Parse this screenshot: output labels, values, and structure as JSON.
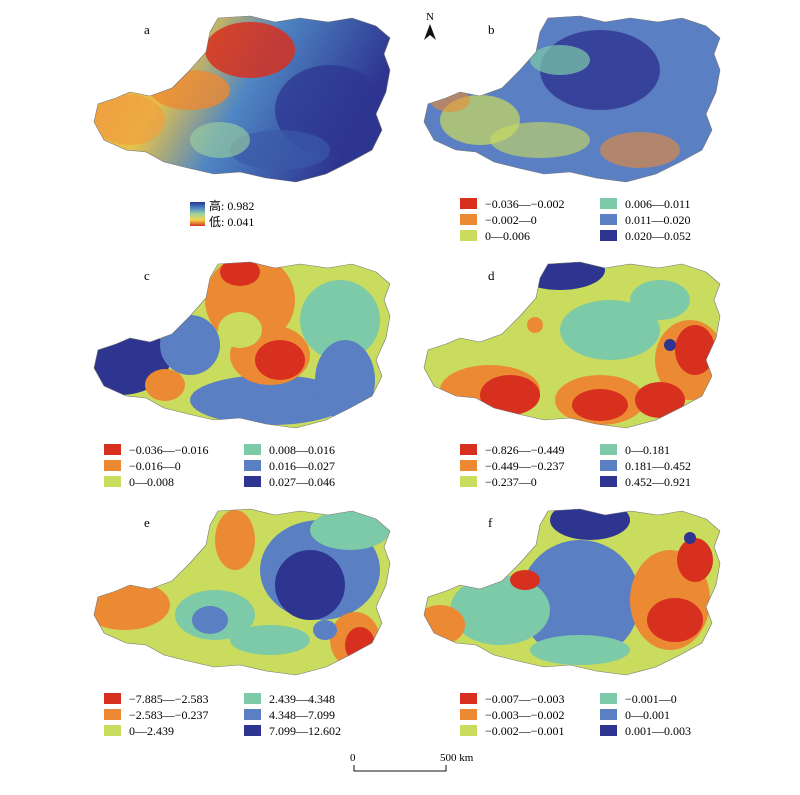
{
  "figure": {
    "north_label": "N",
    "scale_bar": {
      "start_label": "0",
      "end_label": "500 km"
    }
  },
  "colors": {
    "red": "#d7301f",
    "orange": "#ec8a33",
    "yellowgreen": "#c9dc5e",
    "teal": "#7dcaa8",
    "blue": "#5a7fc2",
    "navy": "#2e3590"
  },
  "panels": [
    {
      "id": "a",
      "label": "a",
      "type": "continuous",
      "legend": {
        "high": "高: 0.982",
        "low": "低: 0.041"
      }
    },
    {
      "id": "b",
      "label": "b",
      "type": "classified",
      "legend": [
        "−0.036—−0.002",
        "−0.002—0",
        "0—0.006",
        "0.006—0.011",
        "0.011—0.020",
        "0.020—0.052"
      ]
    },
    {
      "id": "c",
      "label": "c",
      "type": "classified",
      "legend": [
        "−0.036—−0.016",
        "−0.016—0",
        "0—0.008",
        "0.008—0.016",
        "0.016—0.027",
        "0.027—0.046"
      ]
    },
    {
      "id": "d",
      "label": "d",
      "type": "classified",
      "legend": [
        "−0.826—−0.449",
        "−0.449—−0.237",
        "−0.237—0",
        "0—0.181",
        "0.181—0.452",
        "0.452—0.921"
      ]
    },
    {
      "id": "e",
      "label": "e",
      "type": "classified",
      "legend": [
        "−7.885—−2.583",
        "−2.583—−0.237",
        "0—2.439",
        "2.439—4.348",
        "4.348—7.099",
        "7.099—12.602"
      ]
    },
    {
      "id": "f",
      "label": "f",
      "type": "classified",
      "legend": [
        "−0.007—−0.003",
        "−0.003—−0.002",
        "−0.002—−0.001",
        "−0.001—0",
        "0—0.001",
        "0.001—0.003"
      ]
    }
  ]
}
